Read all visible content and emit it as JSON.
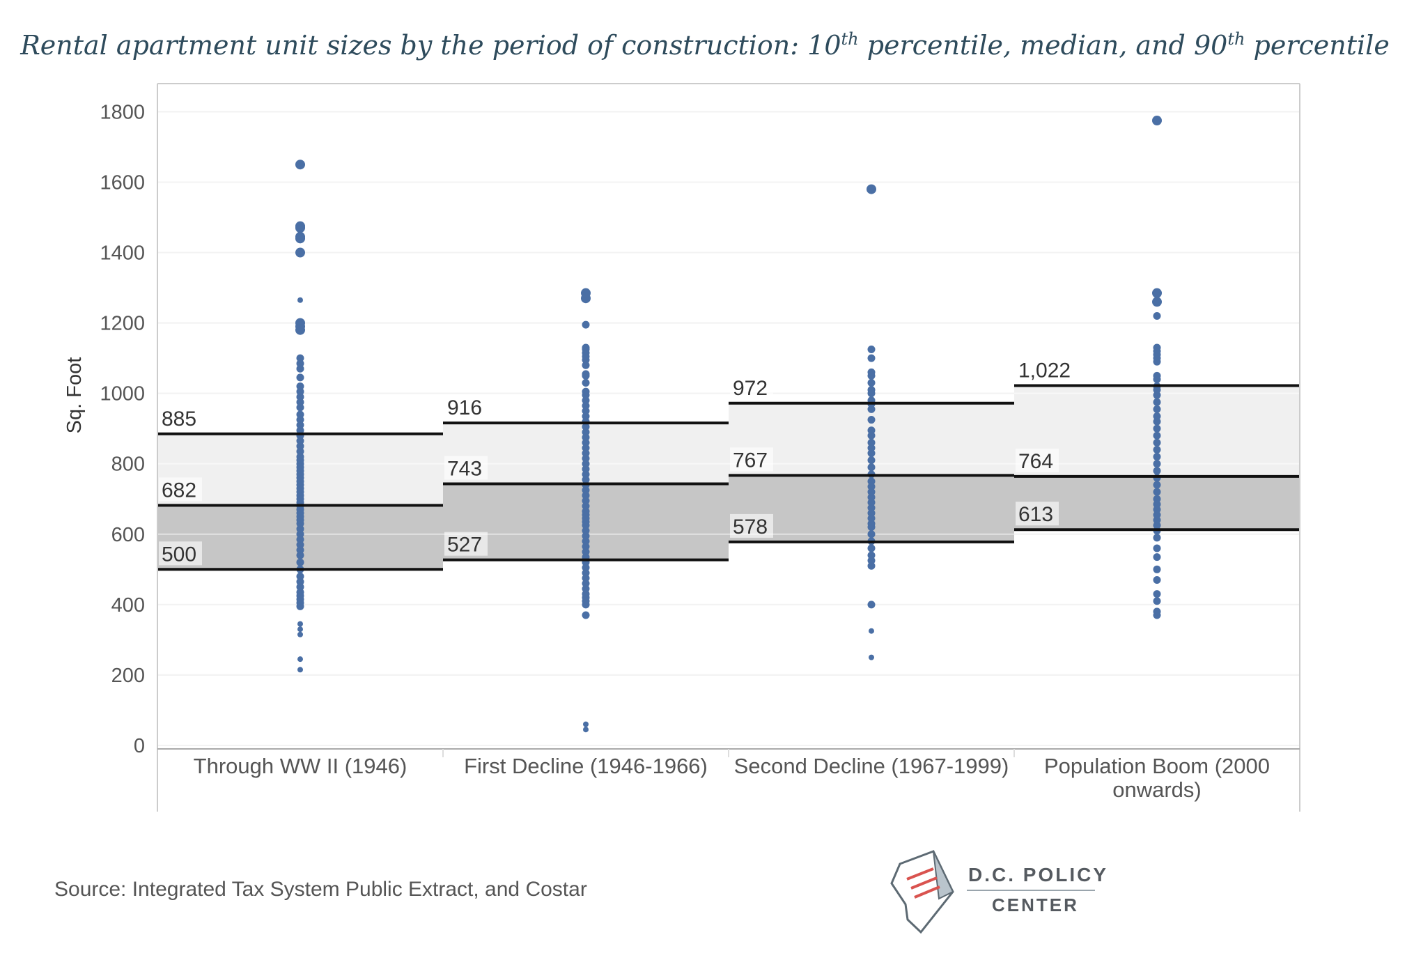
{
  "chart_data": {
    "type": "scatter",
    "title": "Rental apartment unit sizes by the period of construction: 10th percentile, median, and 90th percentile",
    "ylabel": "Sq. Foot",
    "xlabel": "",
    "ylim": [
      -10,
      1880
    ],
    "yticks": [
      0,
      200,
      400,
      600,
      800,
      1000,
      1200,
      1400,
      1600,
      1800
    ],
    "grid": true,
    "categories": [
      "Through WW II (1946)",
      "First Decline (1946-1966)",
      "Second Decline (1967-1999)",
      "Population Boom (2000 onwards)"
    ],
    "category_lines": [
      [
        "Through WW II (1946)"
      ],
      [
        "First Decline (1946-1966)"
      ],
      [
        "Second Decline (1967-1999)"
      ],
      [
        "Population Boom (2000",
        "onwards)"
      ]
    ],
    "p90": [
      885,
      916,
      972,
      1022
    ],
    "median": [
      682,
      743,
      767,
      764
    ],
    "p10": [
      500,
      527,
      578,
      613
    ],
    "p90_labels": [
      "885",
      "916",
      "972",
      "1,022"
    ],
    "median_labels": [
      "682",
      "743",
      "767",
      "764"
    ],
    "p10_labels": [
      "500",
      "527",
      "578",
      "613"
    ],
    "points": [
      [
        215,
        245,
        315,
        330,
        345,
        395,
        405,
        415,
        425,
        435,
        450,
        465,
        480,
        500,
        520,
        540,
        555,
        570,
        585,
        600,
        615,
        630,
        640,
        650,
        660,
        670,
        680,
        690,
        700,
        710,
        720,
        730,
        740,
        750,
        760,
        770,
        780,
        790,
        800,
        810,
        820,
        835,
        850,
        865,
        880,
        895,
        910,
        925,
        940,
        960,
        975,
        990,
        1005,
        1020,
        1045,
        1070,
        1085,
        1100,
        1180,
        1190,
        1200,
        1265,
        1400,
        1440,
        1445,
        1470,
        1475,
        1650
      ],
      [
        45,
        60,
        370,
        400,
        410,
        420,
        430,
        445,
        460,
        475,
        490,
        505,
        520,
        535,
        550,
        565,
        580,
        595,
        610,
        625,
        635,
        645,
        655,
        665,
        680,
        695,
        710,
        725,
        740,
        755,
        770,
        785,
        800,
        815,
        830,
        845,
        860,
        875,
        890,
        905,
        920,
        935,
        950,
        965,
        980,
        995,
        1005,
        1030,
        1050,
        1055,
        1080,
        1095,
        1105,
        1115,
        1125,
        1130,
        1195,
        1270,
        1285
      ],
      [
        250,
        325,
        400,
        510,
        525,
        540,
        560,
        580,
        600,
        620,
        630,
        645,
        660,
        675,
        690,
        705,
        720,
        735,
        750,
        770,
        790,
        810,
        830,
        845,
        860,
        880,
        895,
        925,
        955,
        970,
        980,
        1000,
        1010,
        1030,
        1050,
        1060,
        1100,
        1125,
        1580
      ],
      [
        370,
        380,
        410,
        430,
        470,
        500,
        535,
        560,
        590,
        610,
        625,
        640,
        655,
        670,
        685,
        700,
        720,
        740,
        760,
        780,
        800,
        820,
        840,
        860,
        880,
        900,
        920,
        935,
        955,
        975,
        995,
        1010,
        1020,
        1040,
        1050,
        1090,
        1100,
        1110,
        1120,
        1130,
        1220,
        1260,
        1285,
        1775
      ]
    ],
    "large_points": [
      [
        1180,
        1190,
        1200,
        1400,
        1440,
        1445,
        1470,
        1475,
        1650
      ],
      [
        1270,
        1285
      ],
      [
        1580
      ],
      [
        1260,
        1285,
        1775
      ]
    ],
    "colors": {
      "dots": "#4a6fa5",
      "lines": "#111111",
      "upper_band": "#f0f0f0",
      "lower_band": "#c6c6c6",
      "grid": "#e6e6e6",
      "title": "#2e4b5c"
    }
  },
  "source": "Source: Integrated Tax System Public Extract, and Costar",
  "logo": {
    "line1": "D.C. POLICY",
    "line2": "CENTER"
  }
}
